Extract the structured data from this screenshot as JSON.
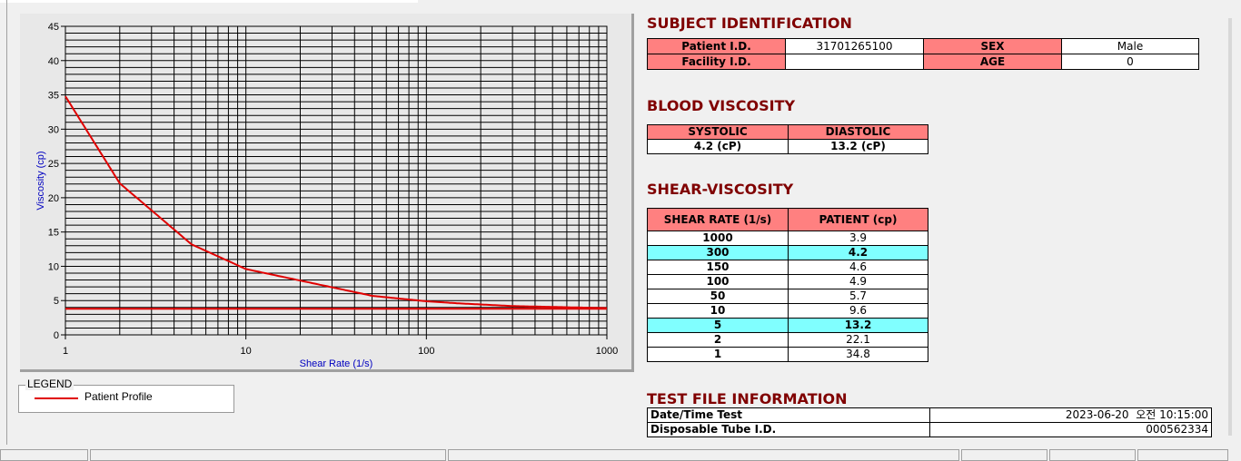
{
  "chart_data": {
    "type": "line",
    "xlabel": "Shear Rate (1/s)",
    "ylabel": "Viscosity (cp)",
    "xscale": "log",
    "xlim": [
      1,
      1000
    ],
    "ylim": [
      0,
      45
    ],
    "xticks": [
      "1",
      "10",
      "100",
      "1000"
    ],
    "yticks": [
      "0",
      "5",
      "10",
      "15",
      "20",
      "25",
      "30",
      "35",
      "40",
      "45"
    ],
    "grid": true,
    "series": [
      {
        "name": "Patient Profile",
        "color": "#e00000",
        "x": [
          1,
          2,
          5,
          10,
          50,
          100,
          150,
          300,
          1000
        ],
        "y": [
          34.8,
          22.1,
          13.2,
          9.6,
          5.7,
          4.9,
          4.6,
          4.2,
          3.9
        ]
      },
      {
        "color": "#e00000",
        "x": [
          1,
          1000
        ],
        "y": [
          3.8,
          3.8
        ]
      }
    ],
    "legend": {
      "title": "LEGEND",
      "placement": "bottom-left"
    }
  },
  "subject": {
    "title": "SUBJECT IDENTIFICATION",
    "patient_id_label": "Patient I.D.",
    "patient_id": "31701265100",
    "sex_label": "SEX",
    "sex": "Male",
    "facility_label": "Facility I.D.",
    "facility": "",
    "age_label": "AGE",
    "age": "0"
  },
  "blood": {
    "title": "BLOOD VISCOSITY",
    "systolic_label": "SYSTOLIC",
    "diastolic_label": "DIASTOLIC",
    "systolic": "4.2 (cP)",
    "diastolic": "13.2 (cP)"
  },
  "shear": {
    "title": "SHEAR-VISCOSITY",
    "col1": "SHEAR RATE (1/s)",
    "col2": "PATIENT (cp)",
    "rows": [
      [
        "1000",
        "3.9"
      ],
      [
        "300",
        "4.2"
      ],
      [
        "150",
        "4.6"
      ],
      [
        "100",
        "4.9"
      ],
      [
        "50",
        "5.7"
      ],
      [
        "10",
        "9.6"
      ],
      [
        "5",
        "13.2"
      ],
      [
        "2",
        "22.1"
      ],
      [
        "1",
        "34.8"
      ]
    ],
    "highlight_color": "#80ffff"
  },
  "testfile": {
    "title": "TEST FILE INFORMATION",
    "date_label": "Date/Time Test",
    "date": "2023-06-20  오전 10:15:00",
    "tube_label": "Disposable Tube I.D.",
    "tube": "000562334"
  }
}
